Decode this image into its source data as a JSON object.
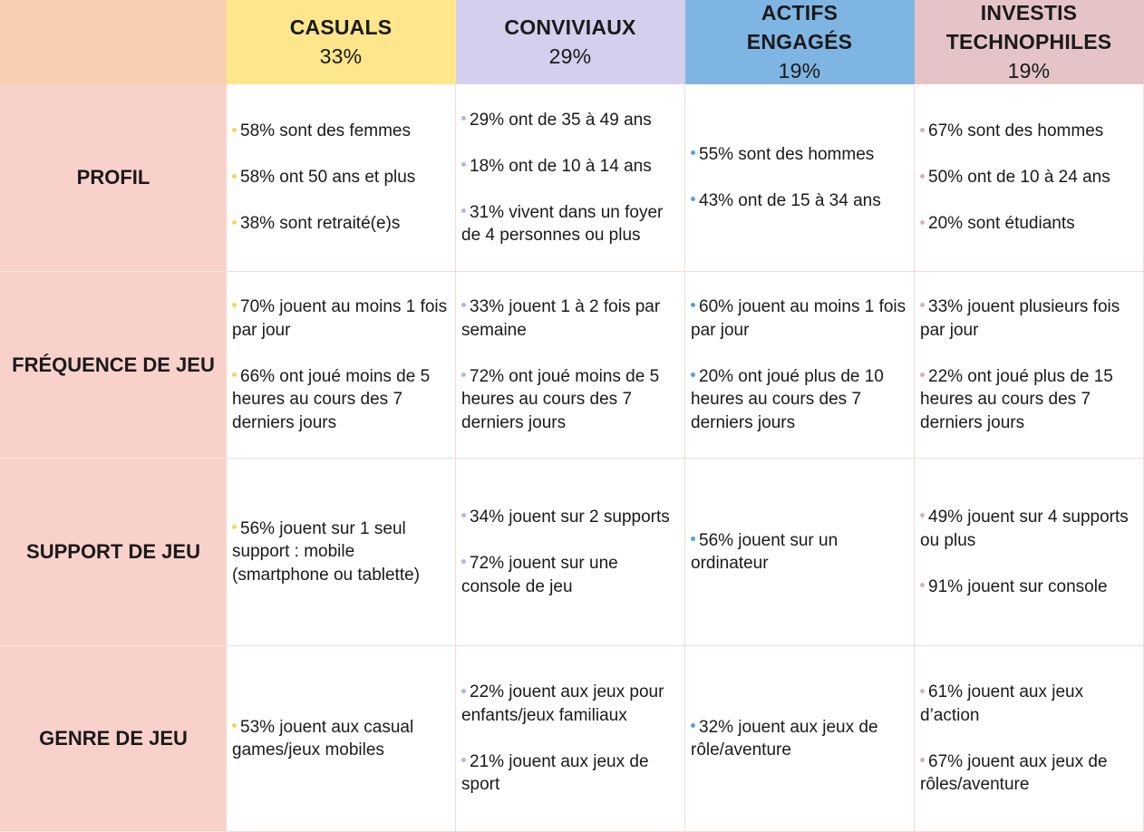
{
  "header": {
    "columns": [
      {
        "name": "CASUALS",
        "pct": "33%"
      },
      {
        "name": "CONVIVIAUX",
        "pct": "29%"
      },
      {
        "name": "ACTIFS ENGAGÉS",
        "pct": "19%"
      },
      {
        "name": "INVESTIS TECHNOPHILES",
        "pct": "19%"
      }
    ]
  },
  "rows": [
    {
      "label": "PROFIL",
      "cells": [
        [
          "58% sont des femmes",
          "58% ont 50 ans et plus",
          "38% sont retraité(e)s"
        ],
        [
          "29% ont de 35 à 49 ans",
          "18% ont de 10 à 14 ans",
          "31% vivent dans un foyer de 4 personnes ou plus"
        ],
        [
          "55% sont des hommes",
          "43% ont de 15 à 34 ans"
        ],
        [
          "67% sont des hommes",
          "50% ont de 10 à 24 ans",
          "20% sont étudiants"
        ]
      ]
    },
    {
      "label": "FRÉQUENCE DE JEU",
      "cells": [
        [
          "70% jouent au moins 1 fois par jour",
          "66% ont joué moins de 5 heures au cours des 7 derniers jours"
        ],
        [
          "33% jouent 1 à 2 fois par semaine",
          "72% ont joué moins de 5 heures au cours des 7 derniers jours"
        ],
        [
          "60% jouent au moins 1 fois par jour",
          "20% ont joué plus de 10 heures au cours des 7 derniers jours"
        ],
        [
          "33% jouent plusieurs fois par jour",
          "22% ont joué plus de 15 heures au cours des 7 derniers jours"
        ]
      ]
    },
    {
      "label": "SUPPORT DE JEU",
      "cells": [
        [
          "56% jouent sur 1 seul support : mobile (smartphone ou tablette)"
        ],
        [
          "34% jouent sur 2 supports",
          "72% jouent sur une console de jeu"
        ],
        [
          "56% jouent sur un ordinateur"
        ],
        [
          "49% jouent sur 4 supports ou plus",
          "91% jouent sur console"
        ]
      ]
    },
    {
      "label": "GENRE DE JEU",
      "cells": [
        [
          "53% jouent aux casual games/jeux mobiles"
        ],
        [
          "22% jouent aux jeux pour enfants/jeux familiaux",
          "21% jouent aux jeux de sport"
        ],
        [
          "32% jouent aux jeux de rôle/aventure"
        ],
        [
          "61% jouent aux jeux d’action",
          "67% jouent aux jeux de rôles/aventure"
        ]
      ]
    }
  ],
  "colors": {
    "corner": "#f9cfb4",
    "row_label_bg": "#f9d1cb",
    "casuals": "#fde68b",
    "conviviaux": "#d3cfec",
    "actifs": "#7fb5e2",
    "investis": "#e5c4c7"
  }
}
